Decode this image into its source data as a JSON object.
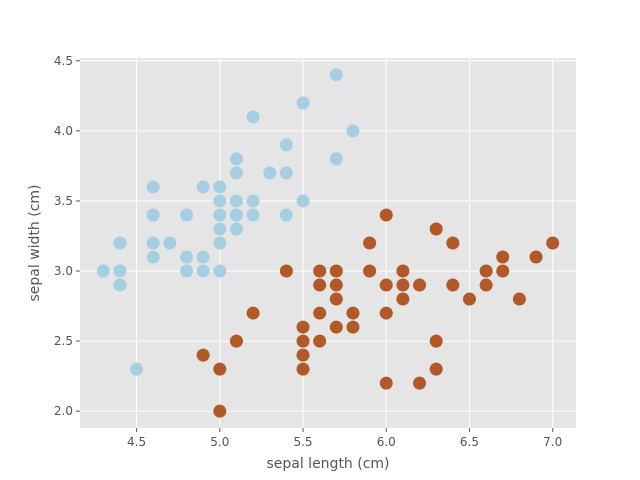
{
  "chart_data": {
    "type": "scatter",
    "xlabel": "sepal length (cm)",
    "ylabel": "sepal width (cm)",
    "xlim": [
      4.16,
      7.14
    ],
    "ylim": [
      1.88,
      4.52
    ],
    "xticks": [
      "4.5",
      "5.0",
      "5.5",
      "6.0",
      "6.5",
      "7.0"
    ],
    "yticks": [
      "2.0",
      "2.5",
      "3.0",
      "3.5",
      "4.0",
      "4.5"
    ],
    "grid": true,
    "series": [
      {
        "color": "#a6cee3",
        "points": [
          [
            4.3,
            3.0
          ],
          [
            4.4,
            3.2
          ],
          [
            4.4,
            3.0
          ],
          [
            4.4,
            2.9
          ],
          [
            4.5,
            2.3
          ],
          [
            4.6,
            3.6
          ],
          [
            4.6,
            3.4
          ],
          [
            4.6,
            3.2
          ],
          [
            4.6,
            3.1
          ],
          [
            4.7,
            3.2
          ],
          [
            4.8,
            3.4
          ],
          [
            4.8,
            3.1
          ],
          [
            4.8,
            3.0
          ],
          [
            4.9,
            3.6
          ],
          [
            4.9,
            3.1
          ],
          [
            4.9,
            3.0
          ],
          [
            5.0,
            3.6
          ],
          [
            5.0,
            3.5
          ],
          [
            5.0,
            3.4
          ],
          [
            5.0,
            3.3
          ],
          [
            5.0,
            3.2
          ],
          [
            5.0,
            3.0
          ],
          [
            5.1,
            3.8
          ],
          [
            5.1,
            3.7
          ],
          [
            5.1,
            3.5
          ],
          [
            5.1,
            3.4
          ],
          [
            5.1,
            3.3
          ],
          [
            5.2,
            4.1
          ],
          [
            5.2,
            3.5
          ],
          [
            5.2,
            3.4
          ],
          [
            5.3,
            3.7
          ],
          [
            5.4,
            3.9
          ],
          [
            5.4,
            3.7
          ],
          [
            5.4,
            3.4
          ],
          [
            5.5,
            4.2
          ],
          [
            5.5,
            3.5
          ],
          [
            5.7,
            4.4
          ],
          [
            5.7,
            3.8
          ],
          [
            5.8,
            4.0
          ]
        ]
      },
      {
        "color": "#b15928",
        "points": [
          [
            4.9,
            2.4
          ],
          [
            5.0,
            2.3
          ],
          [
            5.0,
            2.0
          ],
          [
            5.1,
            2.5
          ],
          [
            5.2,
            2.7
          ],
          [
            5.4,
            3.0
          ],
          [
            5.5,
            2.6
          ],
          [
            5.5,
            2.5
          ],
          [
            5.5,
            2.4
          ],
          [
            5.5,
            2.3
          ],
          [
            5.6,
            3.0
          ],
          [
            5.6,
            2.9
          ],
          [
            5.6,
            2.7
          ],
          [
            5.6,
            2.5
          ],
          [
            5.7,
            3.0
          ],
          [
            5.7,
            2.9
          ],
          [
            5.7,
            2.8
          ],
          [
            5.7,
            2.6
          ],
          [
            5.8,
            2.7
          ],
          [
            5.8,
            2.6
          ],
          [
            5.9,
            3.2
          ],
          [
            5.9,
            3.0
          ],
          [
            6.0,
            3.4
          ],
          [
            6.0,
            2.9
          ],
          [
            6.0,
            2.7
          ],
          [
            6.0,
            2.2
          ],
          [
            6.1,
            3.0
          ],
          [
            6.1,
            2.9
          ],
          [
            6.1,
            2.8
          ],
          [
            6.2,
            2.9
          ],
          [
            6.2,
            2.2
          ],
          [
            6.3,
            3.3
          ],
          [
            6.3,
            2.5
          ],
          [
            6.3,
            2.3
          ],
          [
            6.4,
            3.2
          ],
          [
            6.4,
            2.9
          ],
          [
            6.5,
            2.8
          ],
          [
            6.6,
            3.0
          ],
          [
            6.6,
            2.9
          ],
          [
            6.7,
            3.1
          ],
          [
            6.7,
            3.0
          ],
          [
            6.8,
            2.8
          ],
          [
            6.9,
            3.1
          ],
          [
            7.0,
            3.2
          ]
        ]
      }
    ]
  }
}
